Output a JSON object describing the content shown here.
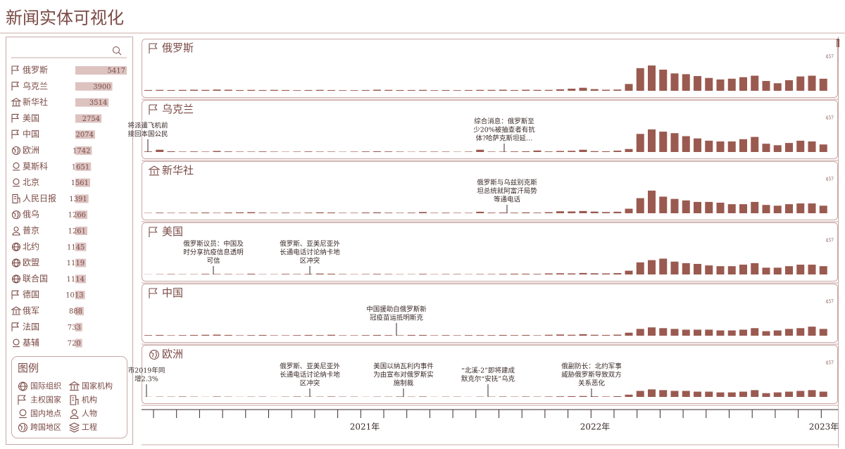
{
  "header": {
    "title": "新闻实体可视化"
  },
  "entities": [
    {
      "name": "俄罗斯",
      "count": 5417
    },
    {
      "name": "乌克兰",
      "count": 3900
    },
    {
      "name": "新华社",
      "count": 3514
    },
    {
      "name": "美国",
      "count": 2754
    },
    {
      "name": "中国",
      "count": 2074
    },
    {
      "name": "欧洲",
      "count": 1742
    },
    {
      "name": "莫斯科",
      "count": 1651
    },
    {
      "name": "北京",
      "count": 1561
    },
    {
      "name": "人民日报",
      "count": 1391
    },
    {
      "name": "俄乌",
      "count": 1266
    },
    {
      "name": "普京",
      "count": 1261
    },
    {
      "name": "北约",
      "count": 1145
    },
    {
      "name": "欧盟",
      "count": 1119
    },
    {
      "name": "联合国",
      "count": 1114
    },
    {
      "name": "德国",
      "count": 1013
    },
    {
      "name": "俄军",
      "count": 888
    },
    {
      "name": "法国",
      "count": 733
    },
    {
      "name": "基辅",
      "count": 720
    }
  ],
  "legend": {
    "title": "图例",
    "items": [
      "国际组织",
      "国家机构",
      "主权国家",
      "机构",
      "国内地点",
      "人物",
      "跨国地区",
      "工程"
    ]
  },
  "panels": [
    {
      "name": "俄罗斯",
      "max": 457,
      "annotations": [],
      "values": [
        10,
        12,
        10,
        12,
        14,
        12,
        16,
        14,
        10,
        12,
        10,
        12,
        10,
        8,
        10,
        12,
        10,
        8,
        8,
        10,
        14,
        12,
        10,
        10,
        12,
        8,
        10,
        8,
        10,
        12,
        12,
        14,
        10,
        14,
        12,
        12,
        20,
        28,
        40,
        22,
        14,
        16,
        90,
        300,
        335,
        280,
        230,
        220,
        195,
        170,
        150,
        160,
        180,
        200,
        130,
        100,
        140,
        190,
        200,
        160
      ]
    },
    {
      "name": "乌克兰",
      "max": 457,
      "annotations": [
        {
          "lines": [
            "将派遣飞机前",
            "接回本国公民"
          ]
        },
        {
          "lines": [
            "综合消息：俄罗斯至",
            "少20%被抽查者有抗",
            "体?哈萨克斯坦延…"
          ]
        }
      ],
      "values": [
        8,
        30,
        10,
        6,
        8,
        6,
        14,
        8,
        6,
        6,
        8,
        6,
        4,
        6,
        8,
        6,
        6,
        4,
        6,
        8,
        10,
        8,
        6,
        4,
        6,
        6,
        6,
        4,
        6,
        30,
        6,
        6,
        8,
        10,
        20,
        8,
        14,
        16,
        30,
        12,
        10,
        18,
        40,
        240,
        300,
        270,
        250,
        210,
        180,
        150,
        140,
        140,
        170,
        200,
        110,
        90,
        120,
        150,
        140,
        100
      ]
    },
    {
      "name": "新华社",
      "max": 457,
      "annotations": [
        {
          "lines": [
            "俄罗斯与乌兹别克斯",
            "坦总统就阿富汗局势",
            "等通电话"
          ]
        }
      ],
      "values": [
        4,
        8,
        6,
        6,
        8,
        10,
        6,
        10,
        12,
        14,
        8,
        6,
        8,
        6,
        8,
        12,
        10,
        6,
        6,
        10,
        12,
        8,
        6,
        8,
        16,
        6,
        8,
        6,
        6,
        20,
        8,
        10,
        8,
        12,
        8,
        14,
        26,
        24,
        30,
        22,
        16,
        20,
        60,
        200,
        300,
        220,
        190,
        170,
        150,
        150,
        140,
        120,
        120,
        150,
        110,
        100,
        120,
        130,
        130,
        100
      ]
    },
    {
      "name": "美国",
      "max": 457,
      "annotations": [
        {
          "lines": [
            "俄罗斯议员：中国及",
            "时分享抗疫信息透明",
            "可信"
          ]
        },
        {
          "lines": [
            "俄罗斯、亚美尼亚外",
            "长通电话讨论纳卡地",
            "区冲突"
          ]
        }
      ],
      "values": [
        2,
        4,
        6,
        4,
        4,
        8,
        6,
        6,
        4,
        10,
        4,
        4,
        8,
        6,
        8,
        12,
        10,
        6,
        4,
        6,
        8,
        6,
        4,
        4,
        8,
        4,
        6,
        6,
        4,
        6,
        6,
        8,
        10,
        10,
        8,
        14,
        16,
        14,
        20,
        16,
        14,
        18,
        50,
        160,
        190,
        210,
        170,
        150,
        140,
        120,
        110,
        110,
        130,
        150,
        90,
        90,
        110,
        130,
        130,
        110
      ]
    },
    {
      "name": "中国",
      "max": 457,
      "annotations": [
        {
          "lines": [
            "中国援助白俄罗斯新",
            "冠疫苗运抵明斯克"
          ]
        }
      ],
      "values": [
        8,
        10,
        6,
        8,
        10,
        12,
        14,
        10,
        6,
        8,
        10,
        6,
        6,
        8,
        10,
        8,
        12,
        6,
        6,
        8,
        10,
        8,
        6,
        10,
        10,
        6,
        8,
        6,
        8,
        8,
        8,
        10,
        8,
        10,
        6,
        12,
        16,
        12,
        20,
        12,
        10,
        14,
        40,
        90,
        110,
        100,
        90,
        80,
        80,
        80,
        70,
        70,
        80,
        100,
        60,
        70,
        90,
        100,
        120,
        90
      ]
    },
    {
      "name": "欧洲",
      "max": 457,
      "annotations": [
        {
          "lines": [
            "市2019年同",
            "增2.3%"
          ]
        },
        {
          "lines": [
            "俄罗斯、亚美尼亚外",
            "长通电话讨论纳卡地",
            "区冲突"
          ]
        },
        {
          "lines": [
            "美国以纳瓦利内事件",
            "为由宣布对俄罗斯实",
            "施制裁"
          ]
        },
        {
          "lines": [
            "“北溪-2”即将建成",
            "默克尔“安抚”乌克"
          ]
        },
        {
          "lines": [
            "俄副防长：北约军事",
            "威胁俄罗斯导致双方",
            "关系恶化"
          ]
        }
      ],
      "values": [
        2,
        4,
        4,
        6,
        4,
        2,
        6,
        4,
        2,
        4,
        4,
        2,
        4,
        6,
        4,
        4,
        6,
        4,
        4,
        2,
        4,
        4,
        6,
        4,
        6,
        2,
        4,
        4,
        2,
        4,
        4,
        6,
        4,
        6,
        4,
        6,
        8,
        10,
        12,
        8,
        6,
        10,
        30,
        80,
        100,
        90,
        80,
        80,
        70,
        70,
        60,
        60,
        70,
        90,
        50,
        60,
        70,
        80,
        90,
        70
      ]
    }
  ],
  "timeline": {
    "labels": [
      "2021年",
      "2022年",
      "2023年"
    ]
  }
}
